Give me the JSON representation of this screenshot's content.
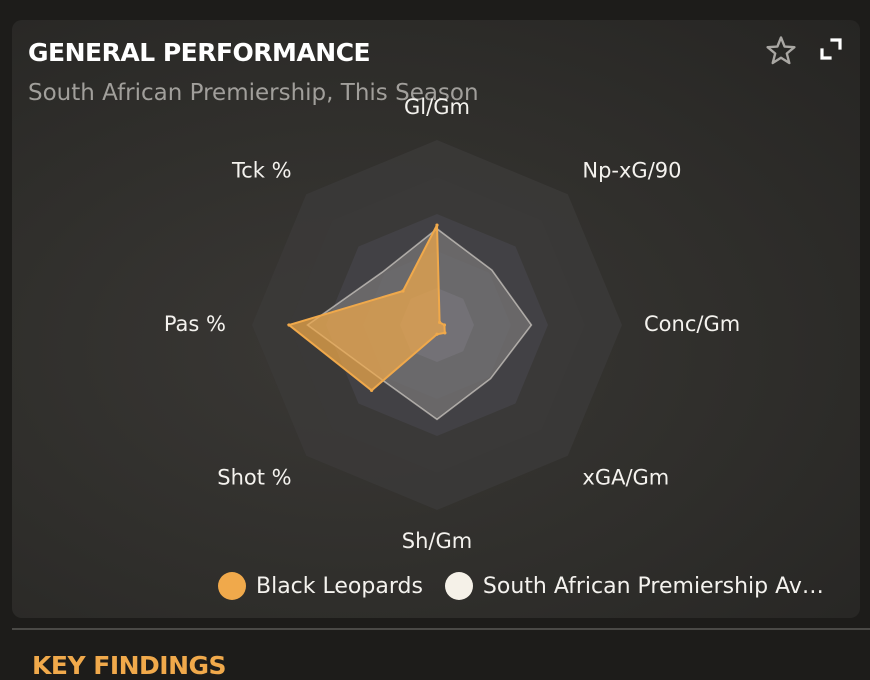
{
  "card": {
    "title": "GENERAL PERFORMANCE",
    "subtitle": "South African Premiership, This Season",
    "star_icon": "star-outline-icon",
    "expand_icon": "expand-icon"
  },
  "colors": {
    "team": "#f0a94b",
    "average": "#f5f1e8",
    "ring_outer": "#3b3a38",
    "ring_mid": "#45444a",
    "ring_inner": "#56555e"
  },
  "chart_data": {
    "type": "radar",
    "axes": [
      "Gl/Gm",
      "Np-xG/90",
      "Conc/Gm",
      "xGA/Gm",
      "Sh/Gm",
      "Shot %",
      "Pas %",
      "Tck %"
    ],
    "range": [
      0,
      1
    ],
    "series": [
      {
        "name": "Black Leopards",
        "values": [
          0.54,
          0.02,
          0.04,
          0.06,
          0.05,
          0.5,
          0.8,
          0.26
        ]
      },
      {
        "name": "South African Premiership Average",
        "values": [
          0.52,
          0.42,
          0.51,
          0.41,
          0.51,
          0.42,
          0.7,
          0.41
        ]
      }
    ]
  },
  "legend": {
    "items": [
      {
        "label": "Black Leopards"
      },
      {
        "label": "South African Premiership Ave..."
      }
    ]
  },
  "next_section": {
    "title": "KEY FINDINGS"
  }
}
